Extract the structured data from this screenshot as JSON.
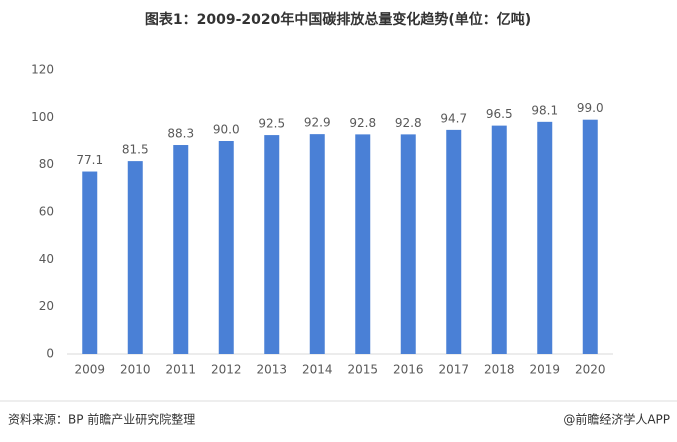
{
  "chart_data": {
    "type": "bar",
    "title": "图表1：2009-2020年中国碳排放总量变化趋势(单位：亿吨)",
    "categories": [
      "2009",
      "2010",
      "2011",
      "2012",
      "2013",
      "2014",
      "2015",
      "2016",
      "2017",
      "2018",
      "2019",
      "2020"
    ],
    "values": [
      77.1,
      81.5,
      88.3,
      90.0,
      92.5,
      92.9,
      92.8,
      92.8,
      94.7,
      96.5,
      98.1,
      99.0
    ],
    "value_labels": [
      "77.1",
      "81.5",
      "88.3",
      "90.0",
      "92.5",
      "92.9",
      "92.8",
      "92.8",
      "94.7",
      "96.5",
      "98.1",
      "99.0"
    ],
    "color": "#4a80d6",
    "ylim": [
      0,
      120
    ],
    "yticks": [
      0,
      20,
      40,
      60,
      80,
      100,
      120
    ],
    "grid": false,
    "source": "资料来源：BP 前瞻产业研究院整理",
    "credit": "@前瞻经济学人APP"
  }
}
